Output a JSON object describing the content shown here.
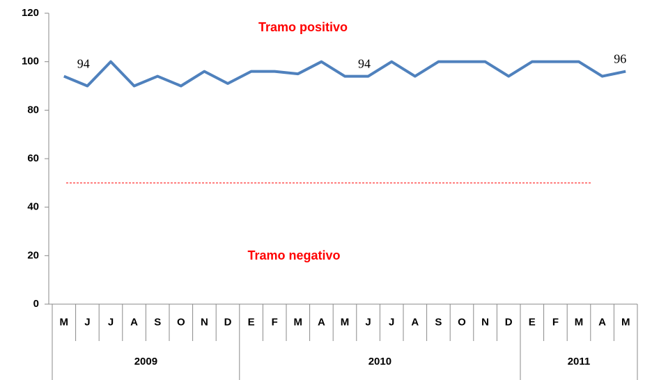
{
  "chart_data": {
    "type": "line",
    "groups": [
      {
        "label": "2009",
        "categories": [
          "M",
          "J",
          "J",
          "A",
          "S",
          "O",
          "N",
          "D"
        ]
      },
      {
        "label": "2010",
        "categories": [
          "E",
          "F",
          "M",
          "A",
          "M",
          "J",
          "J",
          "A",
          "S",
          "O",
          "N",
          "D"
        ]
      },
      {
        "label": "2011",
        "categories": [
          "E",
          "F",
          "M",
          "A",
          "M"
        ]
      }
    ],
    "values": [
      94,
      90,
      100,
      90,
      94,
      90,
      96,
      91,
      96,
      96,
      95,
      100,
      94,
      94,
      100,
      94,
      100,
      100,
      100,
      94,
      100,
      100,
      100,
      94,
      96
    ],
    "value_labels": [
      "94",
      null,
      null,
      null,
      null,
      null,
      null,
      null,
      null,
      null,
      null,
      null,
      "94",
      null,
      null,
      null,
      null,
      null,
      null,
      null,
      null,
      null,
      null,
      null,
      "96"
    ],
    "color": "#4f81bd",
    "ylim": [
      0,
      120
    ],
    "yticks": [
      0,
      20,
      40,
      60,
      80,
      100,
      120
    ],
    "reference_line": {
      "value": 50,
      "color": "#ff0000"
    },
    "annotations": [
      {
        "text": "Tramo positivo",
        "color": "#ff0000"
      },
      {
        "text": "Tramo negativo",
        "color": "#ff0000"
      }
    ]
  }
}
